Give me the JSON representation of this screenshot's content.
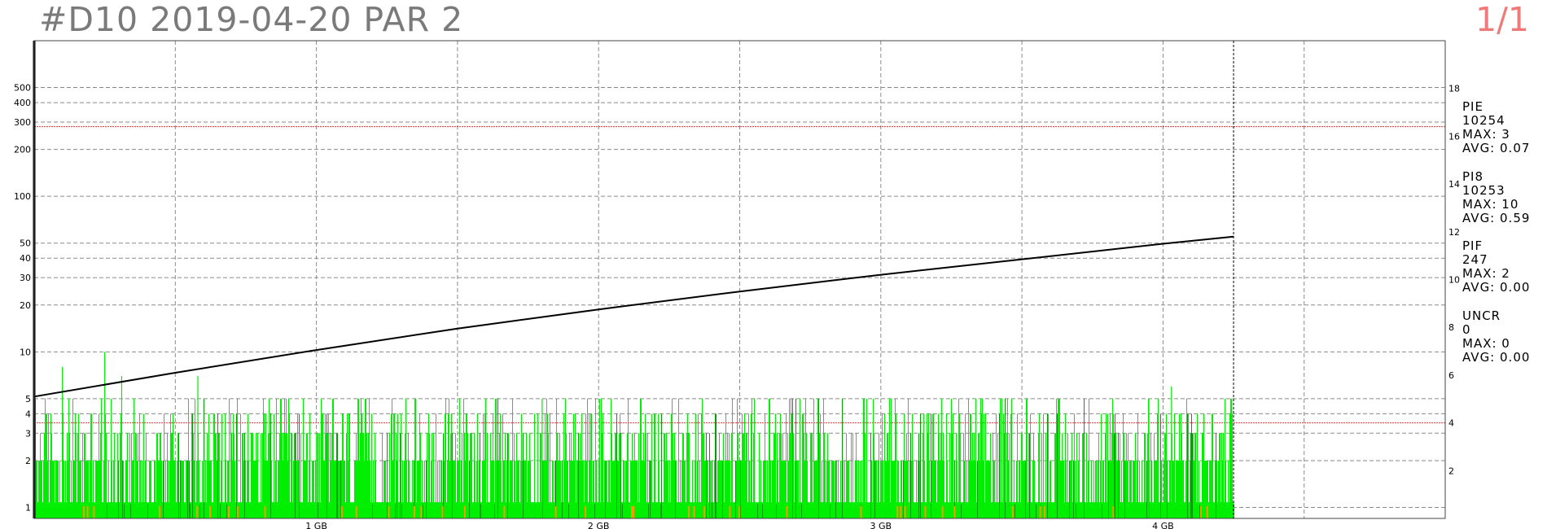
{
  "header": {
    "title": "#D10 2019-04-20 PAR 2",
    "page": "1/1"
  },
  "colors": {
    "rate_line": "#000000",
    "pi8_bars": "#00ee00",
    "pi8_bars_dark": "#00a000",
    "pif_marks": "#ff9900",
    "threshold_line": "#e23030",
    "grid": "#8a8a8a"
  },
  "stats": [
    {
      "name": "PIE",
      "count": "10254",
      "max": "MAX: 3",
      "avg": "AVG: 0.07"
    },
    {
      "name": "PI8",
      "count": "10253",
      "max": "MAX: 10",
      "avg": "AVG: 0.59"
    },
    {
      "name": "PIF",
      "count": "247",
      "max": "MAX: 2",
      "avg": "AVG: 0.00"
    },
    {
      "name": "UNCR",
      "count": "0",
      "max": "MAX: 0",
      "avg": "AVG: 0.00"
    }
  ],
  "chart_data": {
    "type": "bar",
    "x_unit": "GB",
    "x_range": [
      0,
      5
    ],
    "x_ticks": [
      1,
      2,
      3,
      4
    ],
    "x_tick_labels": [
      "1 GB",
      "2 GB",
      "3 GB",
      "4 GB"
    ],
    "x_grid": [
      0.5,
      1,
      1.5,
      2,
      2.5,
      3,
      3.5,
      4,
      4.5
    ],
    "scan_end_gb": 4.25,
    "left_axis": {
      "scale": "log",
      "range": [
        0.85,
        1000
      ],
      "ticks": [
        1,
        2,
        3,
        4,
        5,
        10,
        20,
        30,
        40,
        50,
        100,
        200,
        300,
        400,
        500
      ]
    },
    "right_axis": {
      "scale": "linear",
      "range": [
        0,
        20
      ],
      "ticks": [
        2,
        4,
        6,
        8,
        10,
        12,
        14,
        16,
        18
      ]
    },
    "threshold_lines": [
      {
        "axis": "left",
        "value": 280
      },
      {
        "axis": "right",
        "value": 4
      }
    ],
    "series": [
      {
        "name": "PI8",
        "type": "bar",
        "axis": "left",
        "pattern": "dense error bars 1-5 per sample across 0-4.25 GB",
        "peaks": [
          {
            "x": 0.1,
            "y": 8
          },
          {
            "x": 0.25,
            "y": 10
          },
          {
            "x": 0.31,
            "y": 7
          },
          {
            "x": 0.58,
            "y": 7
          },
          {
            "x": 1.6,
            "y": 5
          },
          {
            "x": 1.8,
            "y": 5
          },
          {
            "x": 2.95,
            "y": 5
          },
          {
            "x": 3.25,
            "y": 5
          },
          {
            "x": 3.95,
            "y": 5
          },
          {
            "x": 4.03,
            "y": 6
          }
        ]
      },
      {
        "name": "",
        "type": "line",
        "axis": "right",
        "x": [
          0,
          0.5,
          1,
          1.5,
          2,
          2.5,
          3,
          3.5,
          4,
          4.25
        ],
        "y": [
          5.1,
          6.1,
          7.05,
          7.95,
          8.75,
          9.5,
          10.2,
          10.85,
          11.5,
          11.8
        ]
      }
    ]
  }
}
